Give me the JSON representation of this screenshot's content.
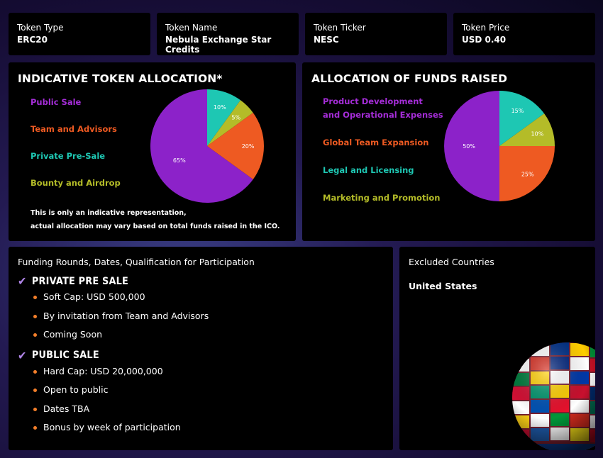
{
  "token_info": [
    {
      "label": "Token Type",
      "value": "ERC20"
    },
    {
      "label": "Token Name",
      "value": "Nebula Exchange Star Credits"
    },
    {
      "label": "Token Ticker",
      "value": "NESC"
    },
    {
      "label": "Token Price",
      "value": "USD 0.40"
    }
  ],
  "allocation": {
    "title": "INDICATIVE TOKEN ALLOCATION*",
    "legend": [
      {
        "label": "Public Sale",
        "color": "#a52dd8"
      },
      {
        "label": "Team and Advisors",
        "color": "#ee5a22"
      },
      {
        "label": "Private Pre-Sale",
        "color": "#1ec7b3"
      },
      {
        "label": "Bounty and Airdrop",
        "color": "#b4bc28"
      }
    ],
    "note_line1": "This is only an indicative representation,",
    "note_line2": "actual allocation may vary based on total funds raised in the ICO."
  },
  "funds": {
    "title": "ALLOCATION OF FUNDS RAISED",
    "legend": [
      {
        "label": "Product Development",
        "color": "#a52dd8"
      },
      {
        "label": "and Operational Expenses",
        "color": "#a52dd8"
      },
      {
        "label": "Global Team Expansion",
        "color": "#ee5a22"
      },
      {
        "label": "Legal and Licensing",
        "color": "#1ec7b3"
      },
      {
        "label": "Marketing and Promotion",
        "color": "#b4bc28"
      }
    ]
  },
  "chart_data": [
    {
      "type": "pie",
      "title": "INDICATIVE TOKEN ALLOCATION*",
      "categories": [
        "Private Pre-Sale",
        "Bounty and Airdrop",
        "Team and Advisors",
        "Public Sale"
      ],
      "values": [
        10,
        5,
        20,
        65
      ],
      "labels": [
        "10%",
        "5%",
        "20%",
        "65%"
      ],
      "colors": [
        "#1ec7b3",
        "#b4bc28",
        "#ee5a22",
        "#8c22c9"
      ]
    },
    {
      "type": "pie",
      "title": "ALLOCATION OF FUNDS RAISED",
      "categories": [
        "Legal and Licensing",
        "Marketing and Promotion",
        "Global Team Expansion",
        "Product Development and Operational Expenses"
      ],
      "values": [
        15,
        10,
        25,
        50
      ],
      "labels": [
        "15%",
        "10%",
        "25%",
        "50%"
      ],
      "colors": [
        "#1ec7b3",
        "#b4bc28",
        "#ee5a22",
        "#8c22c9"
      ]
    }
  ],
  "funding": {
    "title": "Funding Rounds, Dates, Qualification for Participation",
    "rounds": [
      {
        "title": "PRIVATE PRE SALE",
        "items": [
          "Soft Cap: USD 500,000",
          "By invitation from Team and Advisors",
          "Coming Soon"
        ]
      },
      {
        "title": "PUBLIC SALE",
        "items": [
          "Hard Cap: USD 20,000,000",
          "Open to public",
          "Dates TBA",
          "Bonus by week of participation"
        ]
      }
    ]
  },
  "excluded": {
    "title": "Excluded Countries",
    "country": "United States"
  }
}
